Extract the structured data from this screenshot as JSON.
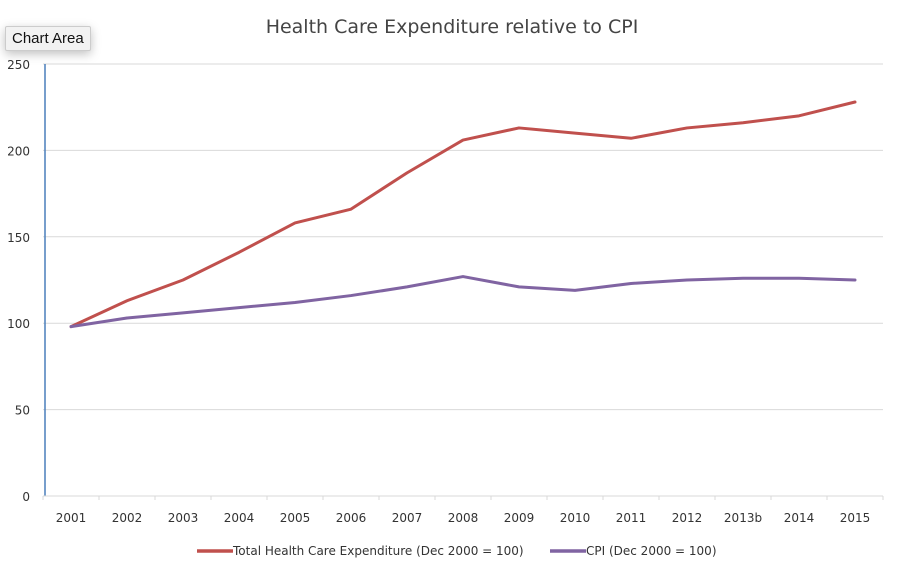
{
  "tooltip": "Chart Area",
  "chart_data": {
    "type": "line",
    "title": "Health Care Expenditure relative to CPI",
    "xlabel": "",
    "ylabel": "",
    "categories": [
      "2001",
      "2002",
      "2003",
      "2004",
      "2005",
      "2006",
      "2007",
      "2008",
      "2009",
      "2010",
      "2011",
      "2012",
      "2013b",
      "2014",
      "2015"
    ],
    "ylim": [
      0,
      250
    ],
    "yticks": [
      0,
      50,
      100,
      150,
      200,
      250
    ],
    "grid": true,
    "legend_position": "bottom",
    "series": [
      {
        "name": "Total Health Care Expenditure (Dec 2000 = 100)",
        "color": "#c0504d",
        "values": [
          98,
          113,
          125,
          141,
          158,
          166,
          187,
          206,
          213,
          210,
          207,
          213,
          216,
          220,
          228
        ]
      },
      {
        "name": "CPI (Dec 2000 = 100)",
        "color": "#8064a2",
        "values": [
          98,
          103,
          106,
          109,
          112,
          116,
          121,
          127,
          121,
          119,
          123,
          125,
          126,
          126,
          125
        ]
      }
    ]
  }
}
